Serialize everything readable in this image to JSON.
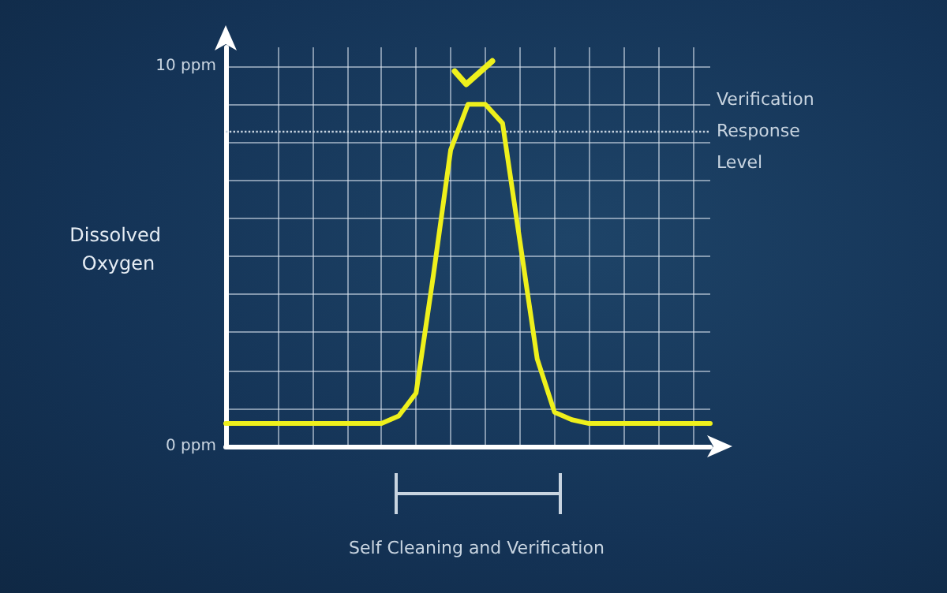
{
  "chart_data": {
    "type": "line",
    "ylabel": "Dissolved Oxygen",
    "xlabel": "Self Cleaning and Verification",
    "categories": [
      null,
      null,
      null,
      null,
      null,
      null,
      null,
      null,
      null,
      null,
      null,
      null,
      null,
      null,
      null,
      null,
      null,
      null,
      null,
      null,
      null,
      null,
      null,
      null,
      null,
      null,
      null,
      null,
      null
    ],
    "series": [
      {
        "color": "#eef01c",
        "values": [
          0.6,
          0.6,
          0.6,
          0.6,
          0.6,
          0.6,
          0.6,
          0.6,
          0.6,
          0.6,
          0.8,
          1.4,
          4.5,
          7.8,
          9.0,
          9.0,
          8.5,
          5.4,
          2.3,
          0.9,
          0.7,
          0.6,
          0.6,
          0.6,
          0.6,
          0.6,
          0.6,
          0.6,
          0.6
        ]
      }
    ],
    "ylim": [
      0,
      10.5
    ],
    "yticks": [
      {
        "value": 0,
        "label": "0 ppm"
      },
      {
        "value": 1,
        "label": null
      },
      {
        "value": 2,
        "label": null
      },
      {
        "value": 3,
        "label": null
      },
      {
        "value": 4,
        "label": null
      },
      {
        "value": 5,
        "label": null
      },
      {
        "value": 6,
        "label": null
      },
      {
        "value": 7,
        "label": null
      },
      {
        "value": 8,
        "label": null
      },
      {
        "value": 9,
        "label": null
      },
      {
        "value": 10,
        "label": "10 ppm"
      }
    ],
    "tick_labels": "y",
    "grid": true,
    "marker": "none",
    "line_style": "solid",
    "ref_lines": [
      {
        "axis": "y",
        "value": 8.3,
        "label": "Verification Response Level",
        "line_style": "dotted",
        "color": "#c8d4e0"
      }
    ]
  }
}
